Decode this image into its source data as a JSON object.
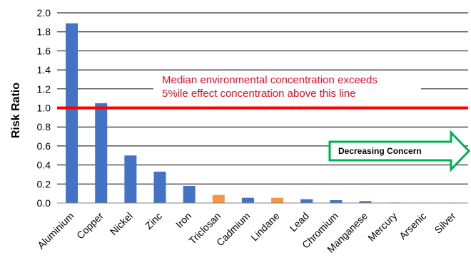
{
  "chart_data": {
    "type": "bar",
    "title": "",
    "xlabel": "",
    "ylabel": "Risk Ratio",
    "ylim": [
      0,
      2.0
    ],
    "yticks": [
      "0.0",
      "0.2",
      "0.4",
      "0.6",
      "0.8",
      "1.0",
      "1.2",
      "1.4",
      "1.6",
      "1.8",
      "2.0"
    ],
    "grid": true,
    "categories": [
      "Aluminium",
      "Copper",
      "Nickel",
      "Zinc",
      "Iron",
      "Triclosan",
      "Cadmium",
      "Lindane",
      "Lead",
      "Chromium",
      "Manganese",
      "Mercury",
      "Arsenic",
      "Silver"
    ],
    "values": [
      1.89,
      1.05,
      0.5,
      0.33,
      0.18,
      0.085,
      0.055,
      0.055,
      0.04,
      0.03,
      0.02,
      0.005,
      0.004,
      0.002
    ],
    "bar_colors": [
      "#4472c4",
      "#4472c4",
      "#4472c4",
      "#4472c4",
      "#4472c4",
      "#f79646",
      "#4472c4",
      "#f79646",
      "#4472c4",
      "#4472c4",
      "#4472c4",
      "#4472c4",
      "#4472c4",
      "#4472c4"
    ],
    "threshold": {
      "value": 1.0,
      "color": "#ff0000",
      "label_line1": "Median environmental concentration exceeds",
      "label_line2": "5%ile effect concentration above this line",
      "label_color": "#e8102a"
    },
    "annotation": {
      "text": "Decreasing Concern",
      "arrow_color": "#00b050"
    }
  }
}
